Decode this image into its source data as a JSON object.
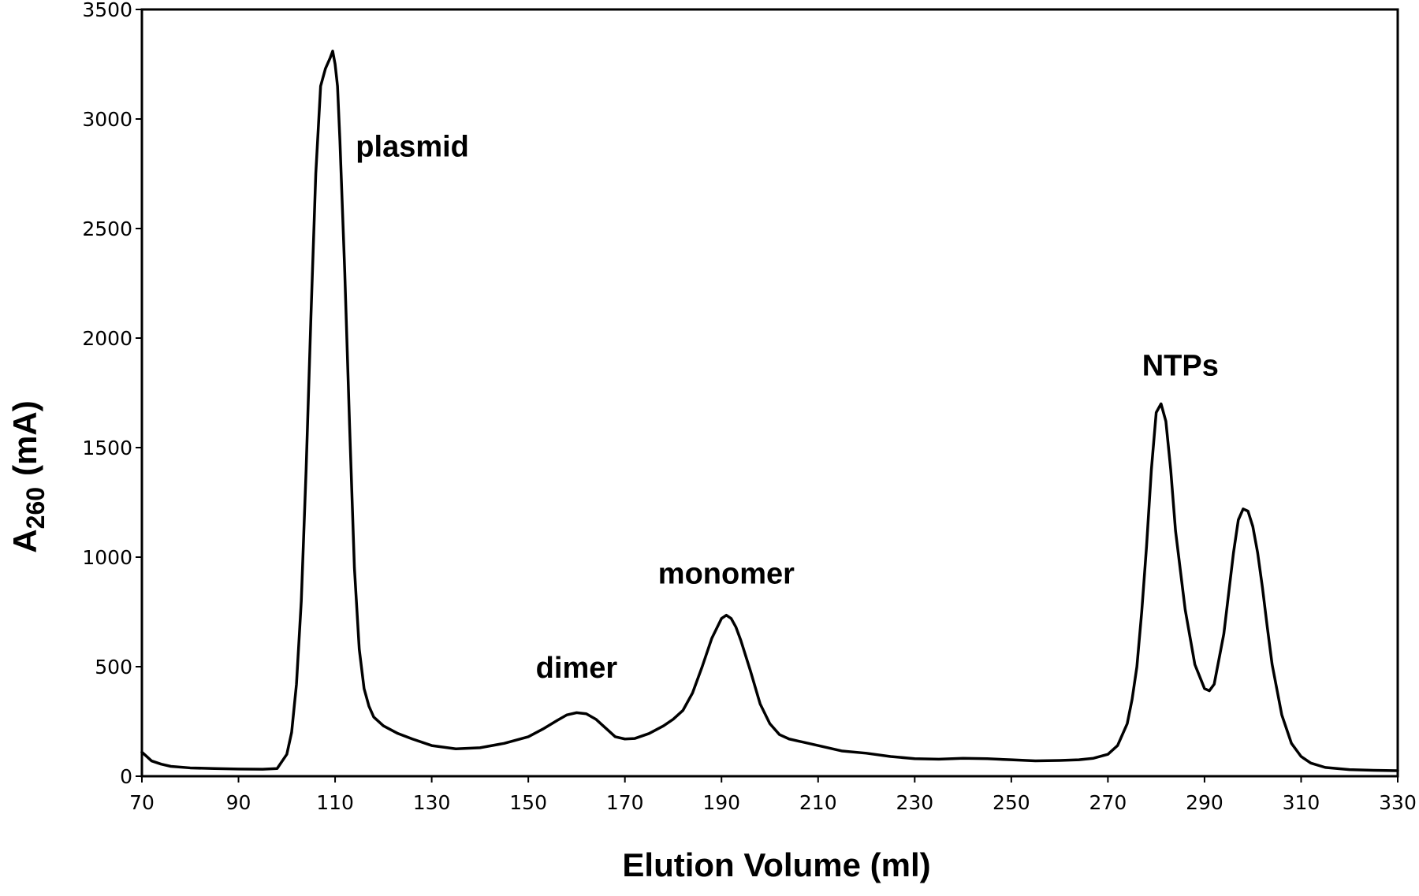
{
  "chart_data": {
    "type": "line",
    "title": "",
    "xlabel": "Elution Volume (ml)",
    "ylabel": {
      "main": "A",
      "sub": "260",
      "unit": "(mA)"
    },
    "xlim": [
      70,
      330
    ],
    "ylim": [
      0,
      3500
    ],
    "xticks": [
      70,
      90,
      110,
      130,
      150,
      170,
      190,
      210,
      230,
      250,
      270,
      290,
      310,
      330
    ],
    "yticks": [
      0,
      500,
      1000,
      1500,
      2000,
      2500,
      3000,
      3500
    ],
    "grid": false,
    "legend": "none",
    "line_color": "#000000",
    "series": [
      {
        "x": [
          70,
          71,
          72,
          74,
          76,
          80,
          85,
          90,
          95,
          98,
          100,
          101,
          102,
          103,
          104,
          105,
          106,
          107,
          108,
          109,
          109.5,
          110,
          110.5,
          111,
          112,
          113,
          114,
          115,
          116,
          117,
          118,
          120,
          123,
          126,
          130,
          135,
          140,
          145,
          150,
          153,
          156,
          158,
          160,
          162,
          164,
          166,
          168,
          170,
          172,
          175,
          178,
          180,
          182,
          184,
          186,
          188,
          190,
          191,
          192,
          193,
          194,
          196,
          198,
          200,
          202,
          204,
          206,
          210,
          215,
          220,
          225,
          230,
          235,
          240,
          245,
          250,
          255,
          260,
          264,
          267,
          270,
          272,
          274,
          275,
          276,
          277,
          278,
          279,
          280,
          281,
          282,
          283,
          284,
          286,
          288,
          290,
          291,
          292,
          294,
          296,
          297,
          298,
          299,
          300,
          301,
          302,
          303,
          304,
          306,
          308,
          310,
          312,
          315,
          320,
          325,
          330
        ],
        "y": [
          110,
          90,
          70,
          55,
          45,
          38,
          35,
          33,
          32,
          35,
          100,
          200,
          420,
          800,
          1400,
          2100,
          2750,
          3150,
          3230,
          3280,
          3310,
          3250,
          3150,
          2900,
          2300,
          1600,
          950,
          580,
          400,
          320,
          270,
          230,
          195,
          170,
          140,
          125,
          130,
          150,
          180,
          215,
          255,
          280,
          290,
          285,
          260,
          220,
          180,
          170,
          172,
          195,
          230,
          260,
          300,
          380,
          500,
          630,
          720,
          735,
          720,
          680,
          620,
          480,
          330,
          240,
          190,
          170,
          160,
          140,
          115,
          105,
          90,
          80,
          78,
          82,
          80,
          75,
          70,
          72,
          75,
          82,
          100,
          140,
          240,
          350,
          500,
          750,
          1050,
          1400,
          1660,
          1700,
          1620,
          1400,
          1120,
          760,
          510,
          400,
          390,
          420,
          650,
          1020,
          1170,
          1220,
          1210,
          1140,
          1020,
          860,
          680,
          510,
          280,
          150,
          90,
          60,
          40,
          30,
          27,
          25
        ]
      }
    ],
    "annotations": [
      {
        "text": "plasmid",
        "x": 126,
        "y": 2830
      },
      {
        "text": "dimer",
        "x": 160,
        "y": 450
      },
      {
        "text": "monomer",
        "x": 191,
        "y": 880
      },
      {
        "text": "NTPs",
        "x": 285,
        "y": 1830
      }
    ]
  }
}
